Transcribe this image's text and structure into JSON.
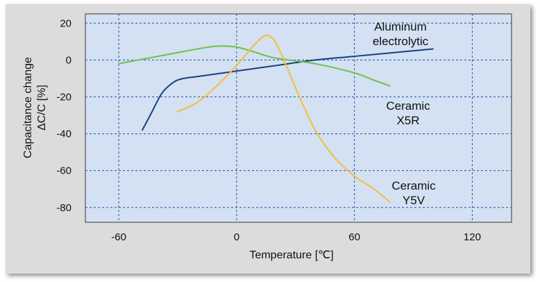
{
  "chart_data": {
    "type": "line",
    "xlabel": "Temperature [℃]",
    "ylabel_line1": "Capacitance change",
    "ylabel_line2": "ΔC/C [%]",
    "xlim": [
      -77,
      140
    ],
    "ylim": [
      -88,
      25
    ],
    "xticks": [
      -60,
      0,
      60,
      120
    ],
    "yticks": [
      20,
      0,
      -20,
      -40,
      -60,
      -80
    ],
    "grid": true,
    "colors": {
      "plot_bg": "#d3e1f2",
      "grid": "#1f4fa8",
      "frame": "#dcdcdc"
    },
    "series": [
      {
        "label_lines": [
          "Aluminum",
          "electrolytic"
        ],
        "color": "#1b3f7a",
        "x": [
          -48,
          -44,
          -38,
          -32,
          -27,
          -20,
          -10,
          0,
          20,
          40,
          60,
          80,
          100
        ],
        "y": [
          -38,
          -30,
          -18,
          -12,
          -10,
          -9,
          -7.5,
          -6,
          -3,
          0,
          2,
          4,
          6
        ]
      },
      {
        "label_lines": [
          "Ceramic",
          "X5R"
        ],
        "color": "#6cc04a",
        "x": [
          -60,
          -40,
          -20,
          -10,
          0,
          10,
          20,
          40,
          60,
          70,
          78
        ],
        "y": [
          -2,
          2,
          6,
          7.5,
          7,
          4,
          1,
          -2,
          -7,
          -11,
          -14
        ]
      },
      {
        "label_lines": [
          "Ceramic",
          "Y5V"
        ],
        "color": "#f5bd3b",
        "x": [
          -30,
          -20,
          -10,
          0,
          8,
          14,
          18,
          22,
          30,
          40,
          50,
          60,
          70,
          78
        ],
        "y": [
          -28,
          -23,
          -14,
          -3,
          7,
          13,
          12,
          5,
          -15,
          -38,
          -53,
          -63,
          -70,
          -77
        ]
      }
    ]
  }
}
